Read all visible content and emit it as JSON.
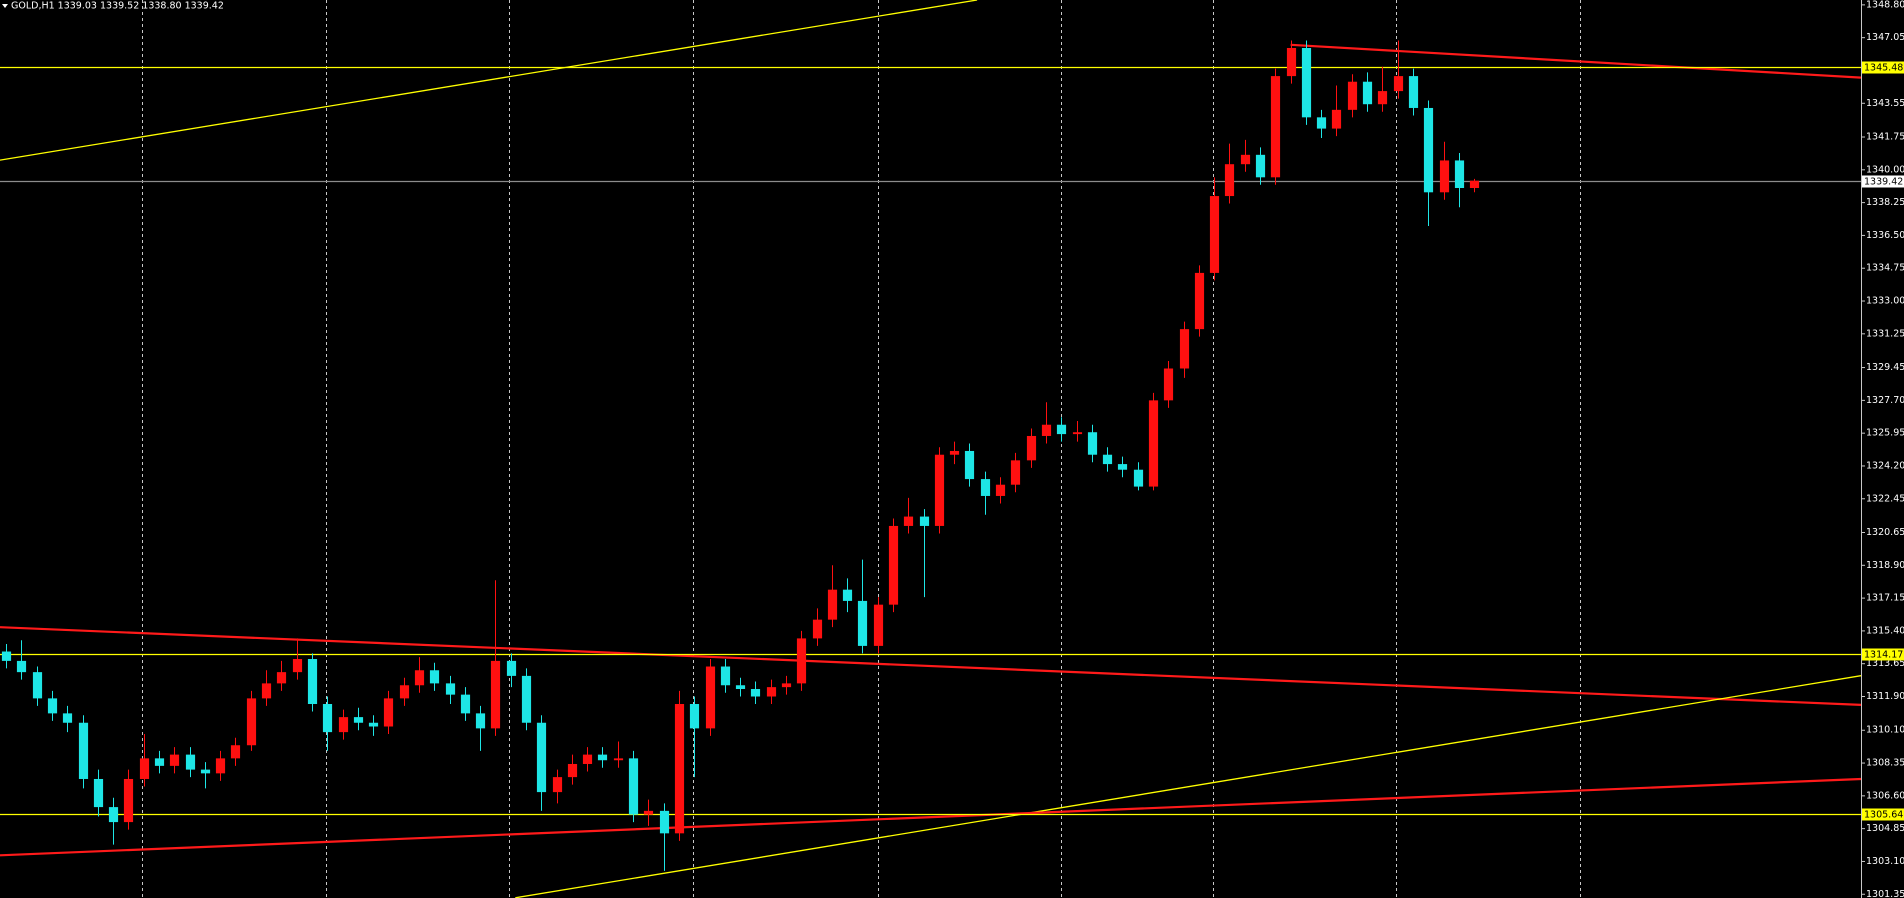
{
  "chart_data": {
    "type": "candlestick",
    "title": "GOLD,H1  1339.03 1339.52 1338.80 1339.42",
    "open": [
      1314.3,
      1313.8,
      1313.2,
      1311.8,
      1311.0,
      1310.5,
      1307.5,
      1306.0,
      1305.2,
      1307.5,
      1308.6,
      1308.2,
      1308.8,
      1308.0,
      1307.8,
      1308.6,
      1309.3,
      1311.8,
      1312.6,
      1313.2,
      1313.9,
      1311.5,
      1310.0,
      1310.8,
      1310.5,
      1310.3,
      1311.8,
      1312.5,
      1313.3,
      1312.6,
      1312.0,
      1311.0,
      1310.2,
      1313.8,
      1313.0,
      1310.5,
      1306.8,
      1307.6,
      1308.3,
      1308.8,
      1308.5,
      1308.6,
      1305.6,
      1305.8,
      1304.6,
      1311.5,
      1310.2,
      1313.5,
      1312.5,
      1312.3,
      1311.9,
      1312.4,
      1312.6,
      1315.0,
      1316.0,
      1317.6,
      1317.0,
      1314.6,
      1316.8,
      1321.0,
      1321.5,
      1321.0,
      1324.8,
      1325.0,
      1323.5,
      1322.6,
      1323.2,
      1324.5,
      1325.8,
      1326.4,
      1325.9,
      1326.0,
      1324.8,
      1324.3,
      1324.0,
      1323.1,
      1327.7,
      1329.4,
      1331.5,
      1334.5,
      1338.6,
      1340.3,
      1340.8,
      1339.6,
      1345.0,
      1346.5,
      1342.8,
      1342.2,
      1343.2,
      1344.7,
      1343.5,
      1344.2,
      1345.0,
      1343.3,
      1338.8,
      1340.5,
      1339.03
    ],
    "high": [
      1314.7,
      1314.9,
      1313.5,
      1312.2,
      1311.4,
      1310.9,
      1308.0,
      1306.5,
      1308.0,
      1309.9,
      1309.0,
      1309.2,
      1309.2,
      1308.4,
      1309.0,
      1309.7,
      1312.2,
      1313.3,
      1313.8,
      1315.0,
      1314.2,
      1311.9,
      1311.2,
      1311.3,
      1310.9,
      1312.2,
      1312.9,
      1314.0,
      1313.7,
      1313.0,
      1312.4,
      1311.4,
      1318.1,
      1314.2,
      1313.4,
      1310.9,
      1308.0,
      1308.8,
      1309.2,
      1309.2,
      1309.5,
      1309.0,
      1306.4,
      1306.2,
      1312.2,
      1311.9,
      1313.9,
      1313.9,
      1312.9,
      1312.7,
      1312.8,
      1313.0,
      1315.4,
      1316.6,
      1318.9,
      1318.2,
      1319.2,
      1317.2,
      1321.4,
      1322.5,
      1321.9,
      1325.2,
      1325.5,
      1325.4,
      1323.9,
      1323.6,
      1324.9,
      1326.2,
      1327.6,
      1326.8,
      1326.6,
      1326.4,
      1325.2,
      1324.7,
      1324.4,
      1328.1,
      1329.8,
      1331.9,
      1334.9,
      1339.6,
      1341.4,
      1341.6,
      1341.2,
      1345.4,
      1346.9,
      1346.9,
      1343.2,
      1344.5,
      1345.1,
      1345.2,
      1345.5,
      1346.9,
      1345.4,
      1343.7,
      1341.5,
      1340.9,
      1339.52
    ],
    "low": [
      1313.4,
      1312.8,
      1311.4,
      1310.6,
      1310.0,
      1307.0,
      1305.5,
      1304.0,
      1304.8,
      1307.1,
      1307.8,
      1307.8,
      1307.6,
      1307.0,
      1307.4,
      1308.2,
      1309.0,
      1311.4,
      1312.2,
      1312.8,
      1311.1,
      1309.0,
      1309.6,
      1310.1,
      1309.8,
      1309.9,
      1311.4,
      1312.1,
      1312.2,
      1311.5,
      1310.6,
      1309.0,
      1309.8,
      1312.4,
      1310.1,
      1305.8,
      1306.2,
      1307.2,
      1307.9,
      1308.1,
      1308.1,
      1305.2,
      1305.0,
      1302.6,
      1304.2,
      1307.6,
      1309.8,
      1312.1,
      1311.9,
      1311.5,
      1311.5,
      1312.0,
      1312.2,
      1314.6,
      1315.6,
      1316.4,
      1314.2,
      1314.2,
      1316.4,
      1320.6,
      1317.2,
      1320.6,
      1324.3,
      1323.1,
      1321.6,
      1322.2,
      1322.8,
      1324.1,
      1325.4,
      1325.5,
      1325.5,
      1324.4,
      1323.9,
      1323.6,
      1322.9,
      1322.9,
      1327.3,
      1328.9,
      1331.1,
      1334.1,
      1338.2,
      1339.9,
      1339.2,
      1339.2,
      1344.6,
      1342.4,
      1341.7,
      1341.8,
      1342.8,
      1343.1,
      1343.1,
      1343.8,
      1342.9,
      1337.0,
      1338.4,
      1338.0,
      1338.8
    ],
    "close": [
      1313.8,
      1313.2,
      1311.8,
      1311.0,
      1310.5,
      1307.5,
      1306.0,
      1305.2,
      1307.5,
      1308.6,
      1308.2,
      1308.8,
      1308.0,
      1307.8,
      1308.6,
      1309.3,
      1311.8,
      1312.6,
      1313.2,
      1313.9,
      1311.5,
      1310.0,
      1310.8,
      1310.5,
      1310.3,
      1311.8,
      1312.5,
      1313.3,
      1312.6,
      1312.0,
      1311.0,
      1310.2,
      1313.8,
      1313.0,
      1310.5,
      1306.8,
      1307.6,
      1308.3,
      1308.8,
      1308.5,
      1308.6,
      1305.6,
      1305.8,
      1304.6,
      1311.5,
      1310.2,
      1313.5,
      1312.5,
      1312.3,
      1311.9,
      1312.4,
      1312.6,
      1315.0,
      1316.0,
      1317.6,
      1317.0,
      1314.6,
      1316.8,
      1321.0,
      1321.5,
      1321.0,
      1324.8,
      1325.0,
      1323.5,
      1322.6,
      1323.2,
      1324.5,
      1325.8,
      1326.4,
      1325.9,
      1326.0,
      1324.8,
      1324.3,
      1324.0,
      1323.1,
      1327.7,
      1329.4,
      1331.5,
      1334.5,
      1338.6,
      1340.3,
      1340.8,
      1339.6,
      1345.0,
      1346.5,
      1342.8,
      1342.2,
      1343.2,
      1344.7,
      1343.5,
      1344.2,
      1345.0,
      1343.3,
      1338.8,
      1340.5,
      1339.03,
      1339.42
    ],
    "up_color": "#ff1010",
    "down_color": "#1ee6e6",
    "xlim": [
      -0.4,
      121.3
    ],
    "xticks": [
      8.9,
      20.9,
      32.9,
      44.9,
      57,
      69,
      78.9,
      90.9,
      102.9
    ],
    "grid": true,
    "ylim": [
      1301.15,
      1349.06
    ],
    "yticks": [
      {
        "value": 1348.8,
        "label": "1348.80"
      },
      1347.05,
      {
        "value": 1345.3,
        "label": "1345.30"
      },
      1343.55,
      1341.75,
      {
        "value": 1340,
        "label": "1340.00"
      },
      1338.25,
      {
        "value": 1336.5,
        "label": "1336.50"
      },
      1334.75,
      {
        "value": 1333,
        "label": "1333.00"
      },
      1331.25,
      1329.45,
      {
        "value": 1327.7,
        "label": "1327.70"
      },
      1325.95,
      {
        "value": 1324.2,
        "label": "1324.20"
      },
      1322.45,
      1320.65,
      {
        "value": 1318.9,
        "label": "1318.90"
      },
      1317.15,
      {
        "value": 1315.4,
        "label": "1315.40"
      },
      1313.65,
      {
        "value": 1311.9,
        "label": "1311.90"
      },
      {
        "value": 1310.1,
        "label": "1310.10"
      },
      1308.35,
      {
        "value": 1306.6,
        "label": "1306.60"
      },
      1304.85,
      {
        "value": 1303.1,
        "label": "1303.10"
      },
      1301.35
    ],
    "levels": [
      {
        "value": 1345.48,
        "color": "#ffff00"
      },
      {
        "value": 1339.42,
        "color": "#8c8c8c"
      },
      {
        "value": 1314.17,
        "color": "#ffff00"
      },
      {
        "value": 1305.64,
        "color": "#ffff00"
      }
    ],
    "trendlines": [
      {
        "x": [
          -0.4,
          63.5
        ],
        "y": [
          1340.52,
          1349.06
        ],
        "color": "#ffff00",
        "width": 1.3
      },
      {
        "x": [
          84,
          121.3
        ],
        "y": [
          1346.67,
          1344.92
        ],
        "color": "#ff1a1a",
        "width": 2.2
      },
      {
        "x": [
          -0.4,
          121.3
        ],
        "y": [
          1315.6,
          1311.45
        ],
        "color": "#ff1a1a",
        "width": 2.2
      },
      {
        "x": [
          33.3,
          121.3
        ],
        "y": [
          1301.16,
          1313.01
        ],
        "color": "#ffff00",
        "width": 1.3
      },
      {
        "x": [
          -0.4,
          121.3
        ],
        "y": [
          1303.43,
          1307.5
        ],
        "color": "#ff1a1a",
        "width": 2.2
      }
    ]
  }
}
